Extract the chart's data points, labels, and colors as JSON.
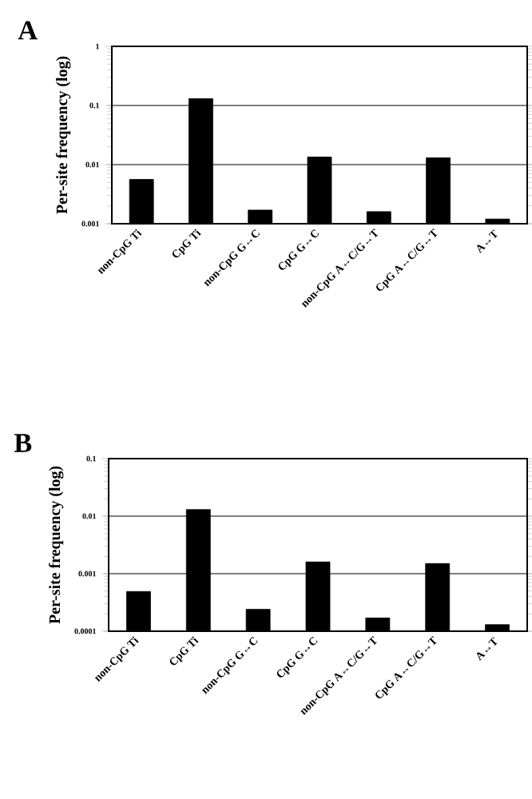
{
  "chart_data": [
    {
      "type": "bar",
      "title": "A",
      "ylabel": "Per-site frequency (log)",
      "categories": [
        "non-CpG Ti",
        "CpG Ti",
        "non-CpG G↔C",
        "CpG G↔C",
        "non-CpG A↔C/G↔T",
        "CpG A↔C/G↔T",
        "A↔T"
      ],
      "values": [
        0.0056,
        0.13,
        0.0017,
        0.0134,
        0.0016,
        0.013,
        0.0012
      ],
      "color": "#000000",
      "log": true,
      "ylim": [
        0.001,
        1
      ],
      "yticks": [
        0.001,
        0.01,
        0.1,
        1
      ],
      "grid": "y"
    },
    {
      "type": "bar",
      "title": "B",
      "ylabel": "Per-site frequency (log)",
      "categories": [
        "non-CpG Ti",
        "CpG Ti",
        "non-CpG G↔C",
        "CpG G↔C",
        "non-CpG A↔C/G↔T",
        "CpG A↔C/G↔T",
        "A↔T"
      ],
      "values": [
        0.00049,
        0.013,
        0.00024,
        0.0016,
        0.00017,
        0.0015,
        0.00013
      ],
      "color": "#000000",
      "log": true,
      "ylim": [
        0.0001,
        0.1
      ],
      "yticks": [
        0.0001,
        0.001,
        0.01,
        0.1
      ],
      "grid": "y"
    }
  ]
}
